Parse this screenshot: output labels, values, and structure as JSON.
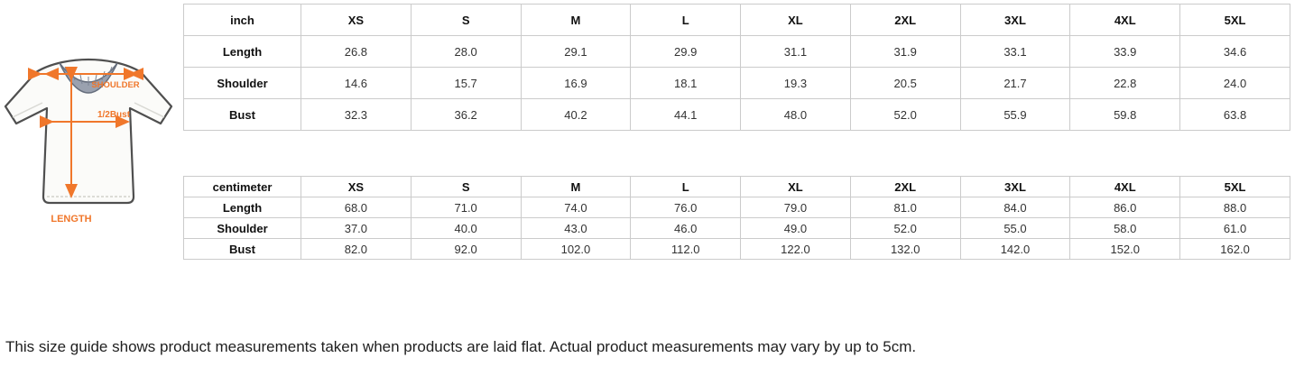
{
  "diagram": {
    "shoulder_label": "SHOULDER",
    "half_bust_label": "1/2Bust",
    "length_label": "LENGTH",
    "accent_color": "#F0772B",
    "collar_color": "#9aa1af"
  },
  "tables": [
    {
      "unit": "inch",
      "columns": [
        "XS",
        "S",
        "M",
        "L",
        "XL",
        "2XL",
        "3XL",
        "4XL",
        "5XL"
      ],
      "rows": [
        {
          "label": "Length",
          "values": [
            "26.8",
            "28.0",
            "29.1",
            "29.9",
            "31.1",
            "31.9",
            "33.1",
            "33.9",
            "34.6"
          ]
        },
        {
          "label": "Shoulder",
          "values": [
            "14.6",
            "15.7",
            "16.9",
            "18.1",
            "19.3",
            "20.5",
            "21.7",
            "22.8",
            "24.0"
          ]
        },
        {
          "label": "Bust",
          "values": [
            "32.3",
            "36.2",
            "40.2",
            "44.1",
            "48.0",
            "52.0",
            "55.9",
            "59.8",
            "63.8"
          ]
        }
      ]
    },
    {
      "unit": "centimeter",
      "columns": [
        "XS",
        "S",
        "M",
        "L",
        "XL",
        "2XL",
        "3XL",
        "4XL",
        "5XL"
      ],
      "rows": [
        {
          "label": "Length",
          "values": [
            "68.0",
            "71.0",
            "74.0",
            "76.0",
            "79.0",
            "81.0",
            "84.0",
            "86.0",
            "88.0"
          ]
        },
        {
          "label": "Shoulder",
          "values": [
            "37.0",
            "40.0",
            "43.0",
            "46.0",
            "49.0",
            "52.0",
            "55.0",
            "58.0",
            "61.0"
          ]
        },
        {
          "label": "Bust",
          "values": [
            "82.0",
            "92.0",
            "102.0",
            "112.0",
            "122.0",
            "132.0",
            "142.0",
            "152.0",
            "162.0"
          ]
        }
      ]
    }
  ],
  "footer": {
    "note": "This size guide shows product measurements taken when products are laid flat. Actual product measurements may vary by up to 5cm."
  }
}
